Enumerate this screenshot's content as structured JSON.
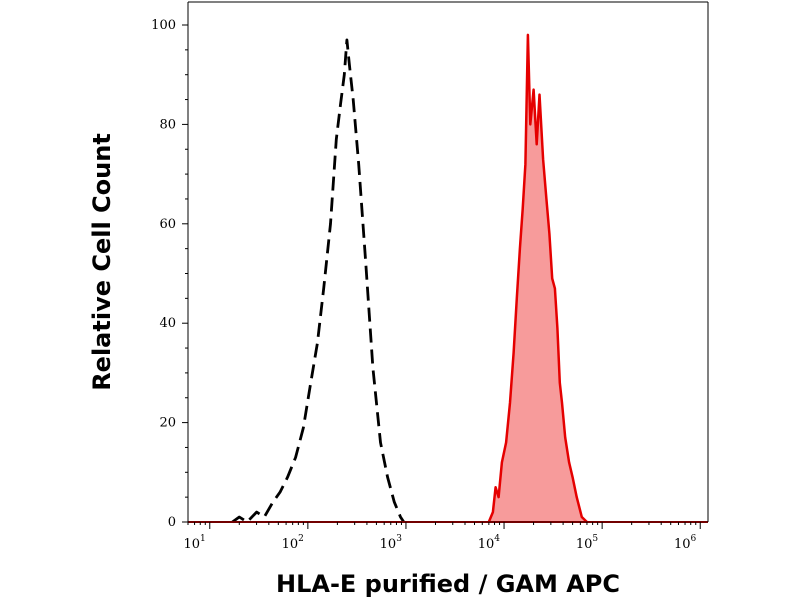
{
  "chart_data": {
    "type": "area",
    "xlabel": "HLA-E purified / GAM APC",
    "ylabel": "Relative Cell Count",
    "x_scale": "log",
    "xlim": [
      6,
      1200000
    ],
    "ylim": [
      0,
      100
    ],
    "y_ticks": [
      {
        "value": 0,
        "label": "0"
      },
      {
        "value": 20,
        "label": "20"
      },
      {
        "value": 40,
        "label": "40"
      },
      {
        "value": 60,
        "label": "60"
      },
      {
        "value": 80,
        "label": "80"
      },
      {
        "value": 100,
        "label": "100"
      }
    ],
    "x_ticks": [
      {
        "value": 10,
        "base": "10",
        "exp": "1"
      },
      {
        "value": 100,
        "base": "10",
        "exp": "2"
      },
      {
        "value": 1000,
        "base": "10",
        "exp": "3"
      },
      {
        "value": 10000,
        "base": "10",
        "exp": "4"
      },
      {
        "value": 100000,
        "base": "10",
        "exp": "5"
      },
      {
        "value": 1000000,
        "base": "10",
        "exp": "6"
      }
    ],
    "grid": false,
    "series": [
      {
        "style": "dashed-outline",
        "color": "#000000",
        "x": [
          17,
          20,
          24,
          30,
          36,
          44,
          52,
          62,
          75,
          90,
          105,
          125,
          145,
          170,
          195,
          215,
          235,
          250,
          265,
          290,
          330,
          390,
          460,
          550,
          650,
          760,
          880,
          950
        ],
        "y": [
          0,
          1,
          0,
          2,
          1,
          4,
          6,
          9,
          13,
          19,
          27,
          36,
          47,
          60,
          77,
          84,
          90,
          97,
          92,
          85,
          72,
          52,
          31,
          16,
          9,
          4,
          1,
          0
        ]
      },
      {
        "style": "filled",
        "color": "#e50000",
        "fill": "#f79b9b",
        "x": [
          7000,
          7700,
          8200,
          8800,
          9500,
          10500,
          11500,
          12500,
          13500,
          14500,
          15500,
          16500,
          17500,
          18500,
          20000,
          21500,
          23000,
          25000,
          27000,
          29000,
          31000,
          33000,
          35000,
          37000,
          39000,
          42000,
          46000,
          50000,
          55000,
          62000,
          70000
        ],
        "y": [
          0,
          2,
          7,
          5,
          12,
          16,
          24,
          34,
          45,
          55,
          63,
          72,
          98,
          80,
          87,
          76,
          86,
          73,
          65,
          58,
          49,
          47,
          39,
          28,
          24,
          17,
          12,
          9,
          5,
          1,
          0
        ]
      }
    ]
  }
}
